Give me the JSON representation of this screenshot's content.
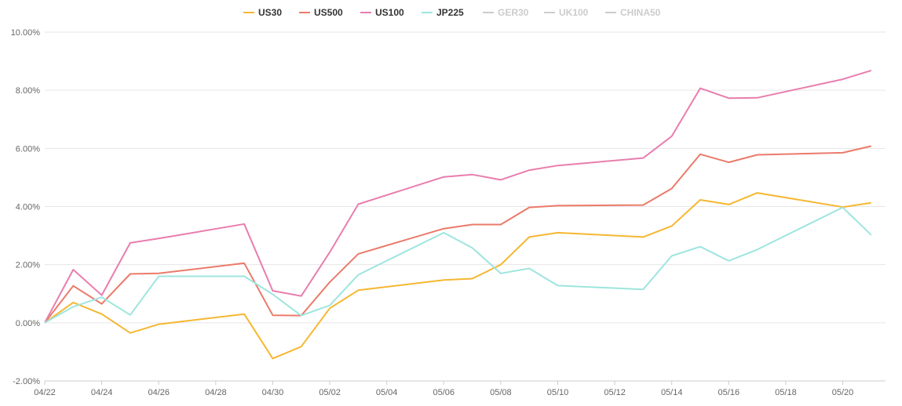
{
  "chart_data": {
    "type": "line",
    "title": "",
    "xlabel": "",
    "ylabel": "",
    "x_dates": [
      "04/22",
      "04/23",
      "04/24",
      "04/25",
      "04/26",
      "04/29",
      "04/30",
      "05/01",
      "05/02",
      "05/03",
      "05/06",
      "05/07",
      "05/08",
      "05/09",
      "05/10",
      "05/13",
      "05/14",
      "05/15",
      "05/16",
      "05/17",
      "05/20",
      "05/21"
    ],
    "x_ticks": [
      "04/22",
      "04/24",
      "04/26",
      "04/28",
      "04/30",
      "05/02",
      "05/04",
      "05/06",
      "05/08",
      "05/10",
      "05/12",
      "05/14",
      "05/16",
      "05/18",
      "05/20"
    ],
    "y_ticks": [
      "-2.00%",
      "0.00%",
      "2.00%",
      "4.00%",
      "6.00%",
      "8.00%",
      "10.00%"
    ],
    "ylim": [
      -2,
      10
    ],
    "legend_position": "top-center",
    "grid": "horizontal",
    "series": [
      {
        "name": "US30",
        "color": "#f5b731",
        "visible": true,
        "values": [
          0,
          0.7,
          0.3,
          -0.35,
          -0.05,
          0.3,
          -1.23,
          -0.82,
          0.5,
          1.12,
          1.47,
          1.52,
          2.0,
          2.95,
          3.1,
          2.95,
          3.33,
          4.23,
          4.07,
          4.47,
          3.98,
          4.13
        ]
      },
      {
        "name": "US500",
        "color": "#eb7a6a",
        "visible": true,
        "values": [
          0,
          1.27,
          0.65,
          1.68,
          1.7,
          2.05,
          0.26,
          0.25,
          1.4,
          2.37,
          3.24,
          3.38,
          3.38,
          3.97,
          4.03,
          4.05,
          4.62,
          5.8,
          5.52,
          5.78,
          5.85,
          6.08
        ]
      },
      {
        "name": "US100",
        "color": "#e97dae",
        "visible": true,
        "values": [
          0,
          1.83,
          0.95,
          2.75,
          2.9,
          3.4,
          1.1,
          0.92,
          2.43,
          4.08,
          5.02,
          5.1,
          4.92,
          5.25,
          5.41,
          5.67,
          6.42,
          8.07,
          7.73,
          7.74,
          8.38,
          8.68
        ]
      },
      {
        "name": "JP225",
        "color": "#9ee5df",
        "visible": true,
        "values": [
          0,
          0.55,
          0.88,
          0.27,
          1.6,
          1.6,
          0.98,
          0.25,
          0.6,
          1.65,
          3.1,
          2.58,
          1.7,
          1.87,
          1.28,
          1.15,
          2.3,
          2.62,
          2.13,
          2.52,
          3.97,
          3.02
        ]
      },
      {
        "name": "GER30",
        "color": "#cccccc",
        "visible": false,
        "values": []
      },
      {
        "name": "UK100",
        "color": "#cccccc",
        "visible": false,
        "values": []
      },
      {
        "name": "CHINA50",
        "color": "#cccccc",
        "visible": false,
        "values": []
      }
    ]
  }
}
